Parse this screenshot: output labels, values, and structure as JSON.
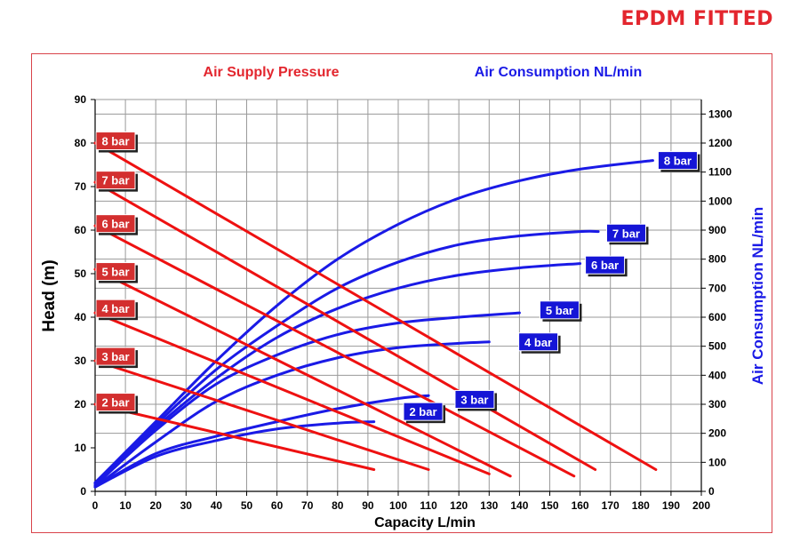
{
  "brand": "EPDM FITTED",
  "chart_data": {
    "type": "line",
    "title_left": "Air Supply Pressure",
    "title_right": "Air Consumption NL/min",
    "xlabel": "Capacity L/min",
    "ylabel": "Head (m)",
    "y2label": "Air Consumption NL/min",
    "xlim": [
      0,
      200
    ],
    "ylim": [
      0,
      90
    ],
    "y2lim": [
      0,
      1350
    ],
    "x_ticks": [
      0,
      10,
      20,
      30,
      40,
      50,
      60,
      70,
      80,
      90,
      100,
      110,
      120,
      130,
      140,
      150,
      160,
      170,
      180,
      190,
      200
    ],
    "y_ticks": [
      0,
      10,
      20,
      30,
      40,
      50,
      60,
      70,
      80,
      90
    ],
    "y2_ticks": [
      0,
      100,
      200,
      300,
      400,
      500,
      600,
      700,
      800,
      900,
      1000,
      1100,
      1200,
      1300
    ],
    "grid": true,
    "colors": {
      "pressure": "#ee1111",
      "consumption": "#1a1ae6",
      "badge_pressure": "#d32f2f",
      "badge_consumption": "#1515d6"
    },
    "pressure_series": [
      {
        "name": "8 bar",
        "points": [
          [
            0,
            80
          ],
          [
            185,
            5
          ]
        ]
      },
      {
        "name": "7 bar",
        "points": [
          [
            0,
            71
          ],
          [
            165,
            5
          ]
        ]
      },
      {
        "name": "6 bar",
        "points": [
          [
            0,
            61
          ],
          [
            158,
            3.5
          ]
        ]
      },
      {
        "name": "5 bar",
        "points": [
          [
            0,
            51
          ],
          [
            137,
            3.5
          ]
        ]
      },
      {
        "name": "4 bar",
        "points": [
          [
            0,
            41
          ],
          [
            130,
            4
          ]
        ]
      },
      {
        "name": "3 bar",
        "points": [
          [
            0,
            30
          ],
          [
            110,
            5
          ]
        ]
      },
      {
        "name": "2 bar",
        "points": [
          [
            0,
            20
          ],
          [
            92,
            5
          ]
        ]
      }
    ],
    "consumption_series": [
      {
        "name": "8 bar",
        "points": [
          [
            0,
            30
          ],
          [
            20,
            240
          ],
          [
            40,
            450
          ],
          [
            60,
            640
          ],
          [
            80,
            800
          ],
          [
            100,
            920
          ],
          [
            120,
            1010
          ],
          [
            140,
            1070
          ],
          [
            160,
            1110
          ],
          [
            184,
            1140
          ]
        ]
      },
      {
        "name": "7 bar",
        "points": [
          [
            0,
            30
          ],
          [
            20,
            230
          ],
          [
            40,
            420
          ],
          [
            60,
            570
          ],
          [
            80,
            700
          ],
          [
            100,
            790
          ],
          [
            120,
            850
          ],
          [
            140,
            880
          ],
          [
            160,
            895
          ],
          [
            166,
            895
          ]
        ]
      },
      {
        "name": "6 bar",
        "points": [
          [
            0,
            25
          ],
          [
            20,
            220
          ],
          [
            40,
            390
          ],
          [
            60,
            530
          ],
          [
            80,
            630
          ],
          [
            100,
            700
          ],
          [
            120,
            745
          ],
          [
            140,
            770
          ],
          [
            160,
            785
          ]
        ]
      },
      {
        "name": "5 bar",
        "points": [
          [
            0,
            20
          ],
          [
            20,
            210
          ],
          [
            40,
            370
          ],
          [
            60,
            470
          ],
          [
            80,
            540
          ],
          [
            100,
            580
          ],
          [
            120,
            600
          ],
          [
            140,
            615
          ]
        ]
      },
      {
        "name": "4 bar",
        "points": [
          [
            0,
            15
          ],
          [
            20,
            170
          ],
          [
            40,
            310
          ],
          [
            60,
            400
          ],
          [
            80,
            460
          ],
          [
            100,
            495
          ],
          [
            120,
            510
          ],
          [
            130,
            515
          ]
        ]
      },
      {
        "name": "3 bar",
        "points": [
          [
            0,
            15
          ],
          [
            20,
            130
          ],
          [
            40,
            190
          ],
          [
            60,
            240
          ],
          [
            80,
            285
          ],
          [
            100,
            320
          ],
          [
            110,
            330
          ]
        ]
      },
      {
        "name": "2 bar",
        "points": [
          [
            0,
            15
          ],
          [
            20,
            120
          ],
          [
            40,
            175
          ],
          [
            60,
            215
          ],
          [
            80,
            235
          ],
          [
            92,
            240
          ]
        ]
      }
    ],
    "pressure_badges": [
      {
        "name": "8 bar",
        "x": 0,
        "y": 80.5
      },
      {
        "name": "7 bar",
        "x": 0,
        "y": 71.5
      },
      {
        "name": "6 bar",
        "x": 0,
        "y": 61.5
      },
      {
        "name": "5 bar",
        "x": 0,
        "y": 50.5
      },
      {
        "name": "4 bar",
        "x": 0,
        "y": 42
      },
      {
        "name": "3 bar",
        "x": 0,
        "y": 31
      },
      {
        "name": "2 bar",
        "x": 0,
        "y": 20.5
      }
    ],
    "consumption_badges": [
      {
        "name": "8 bar",
        "x": 184,
        "y": 1140
      },
      {
        "name": "7 bar",
        "x": 167,
        "y": 890
      },
      {
        "name": "6 bar",
        "x": 160,
        "y": 780
      },
      {
        "name": "5 bar",
        "x": 145,
        "y": 625
      },
      {
        "name": "4 bar",
        "x": 138,
        "y": 515
      },
      {
        "name": "3 bar",
        "x": 117,
        "y": 317
      },
      {
        "name": "2 bar",
        "x": 100,
        "y": 275
      }
    ]
  }
}
